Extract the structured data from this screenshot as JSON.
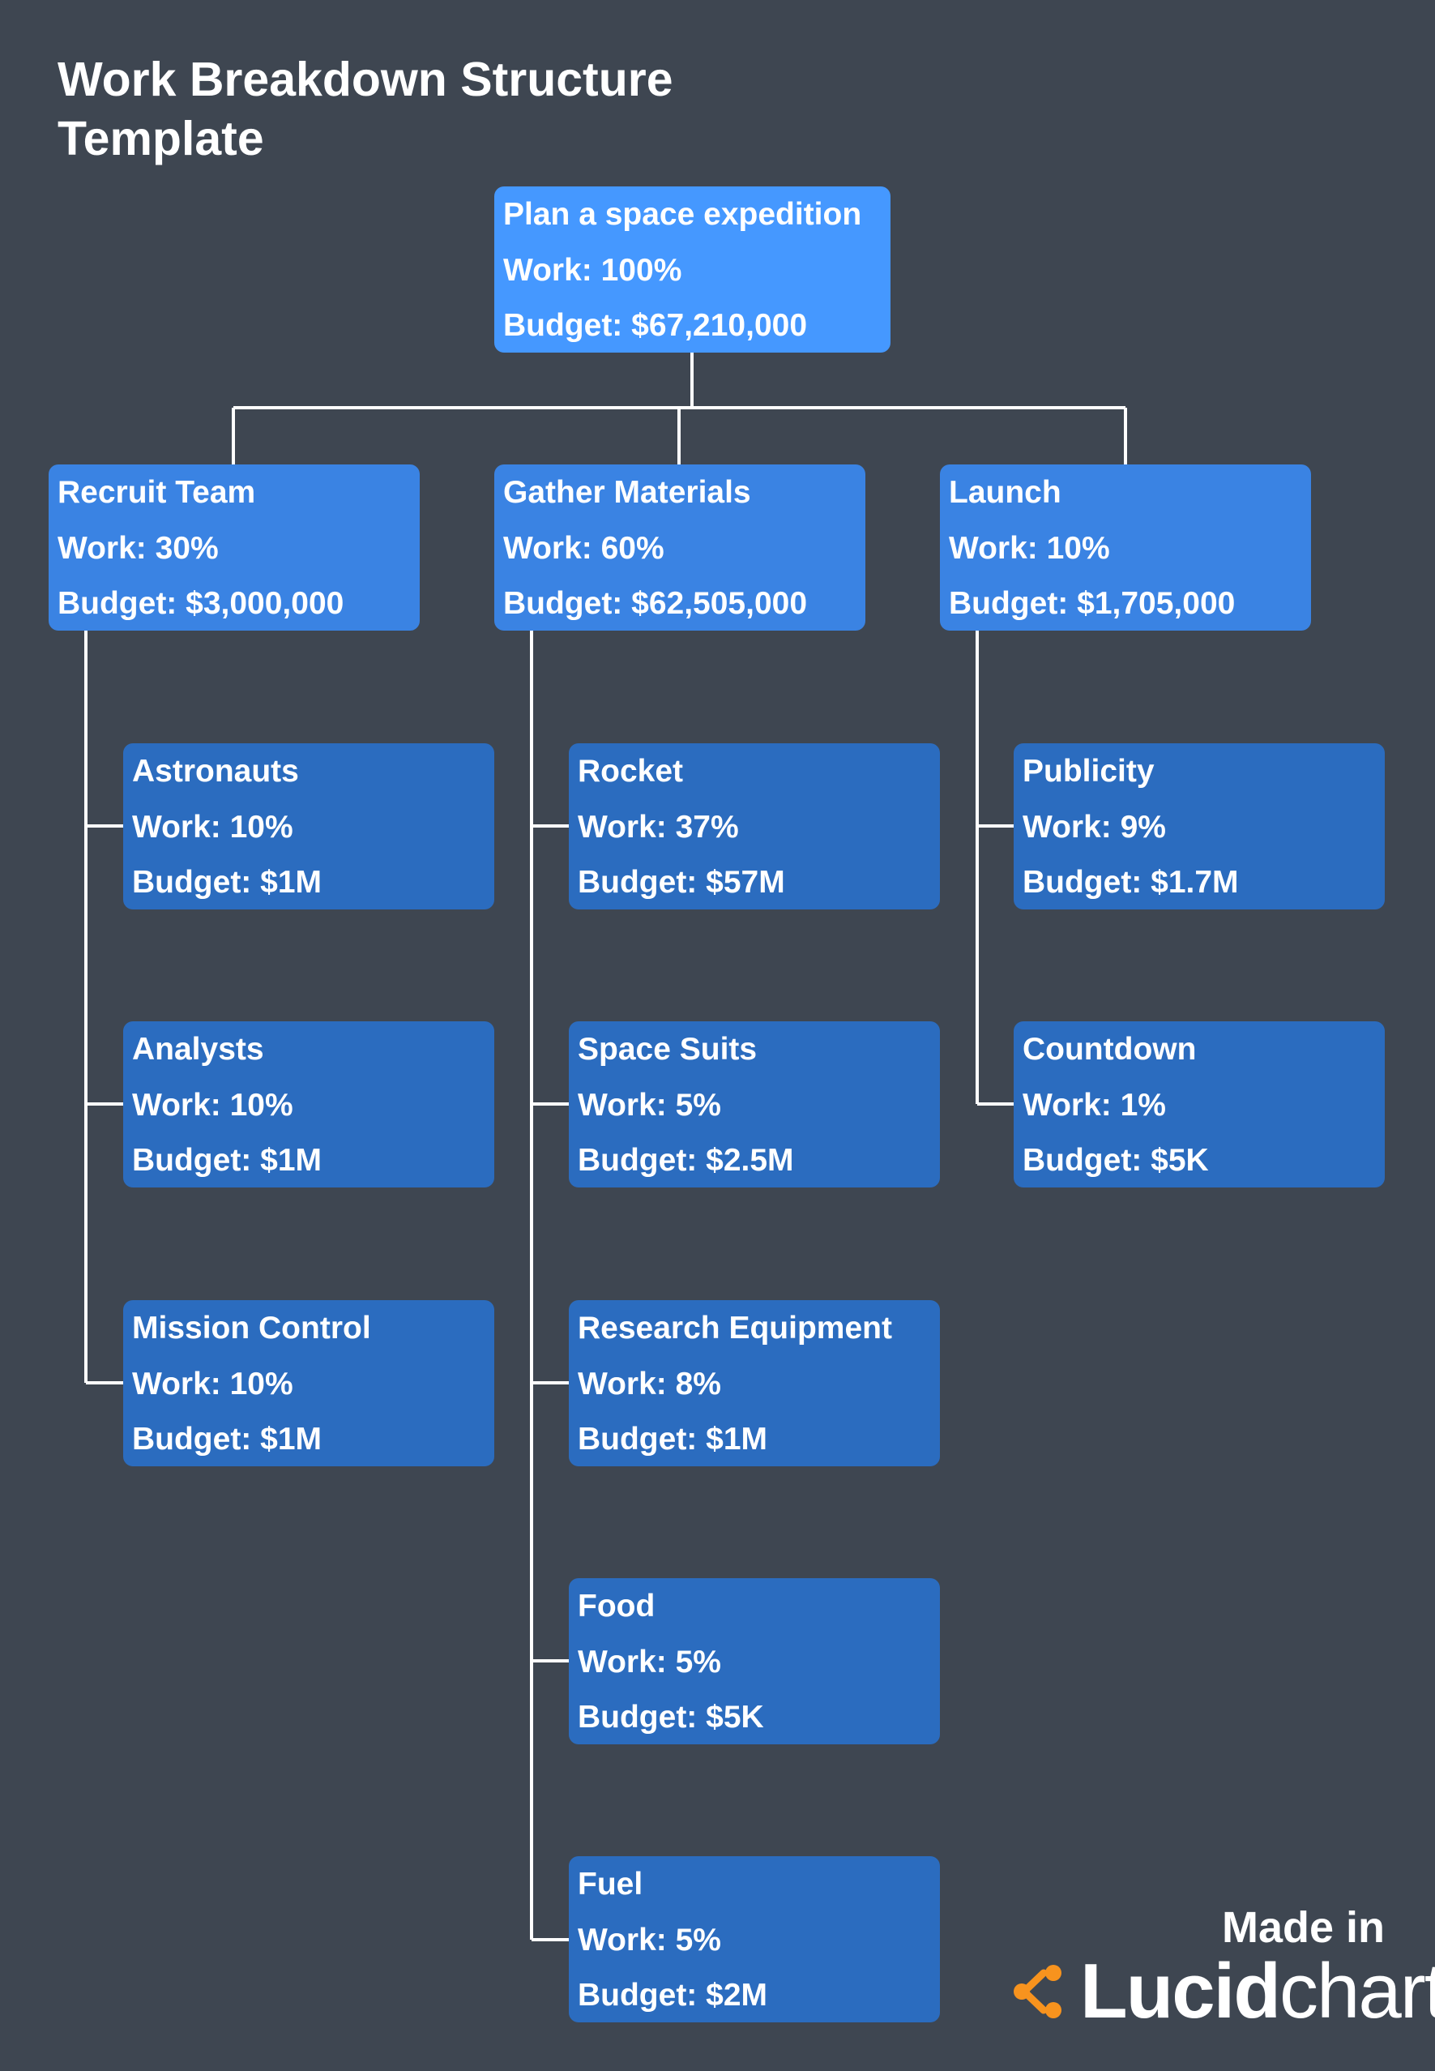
{
  "title": {
    "line1": "Work Breakdown Structure",
    "line2": "Template"
  },
  "root": {
    "name": "Plan a space expedition",
    "work": "Work: 100%",
    "budget": "Budget: $67,210,000"
  },
  "branches": [
    {
      "name": "Recruit Team",
      "work": "Work: 30%",
      "budget": "Budget: $3,000,000",
      "children": [
        {
          "name": "Astronauts",
          "work": "Work: 10%",
          "budget": "Budget: $1M"
        },
        {
          "name": "Analysts",
          "work": "Work: 10%",
          "budget": "Budget: $1M"
        },
        {
          "name": "Mission Control",
          "work": "Work: 10%",
          "budget": "Budget: $1M"
        }
      ]
    },
    {
      "name": "Gather Materials",
      "work": "Work: 60%",
      "budget": "Budget: $62,505,000",
      "children": [
        {
          "name": "Rocket",
          "work": "Work: 37%",
          "budget": "Budget: $57M"
        },
        {
          "name": "Space Suits",
          "work": "Work: 5%",
          "budget": "Budget: $2.5M"
        },
        {
          "name": "Research Equipment",
          "work": "Work: 8%",
          "budget": "Budget: $1M"
        },
        {
          "name": "Food",
          "work": "Work: 5%",
          "budget": "Budget: $5K"
        },
        {
          "name": "Fuel",
          "work": "Work: 5%",
          "budget": "Budget: $2M"
        }
      ]
    },
    {
      "name": "Launch",
      "work": "Work: 10%",
      "budget": "Budget: $1,705,000",
      "children": [
        {
          "name": "Publicity",
          "work": "Work: 9%",
          "budget": "Budget: $1.7M"
        },
        {
          "name": "Countdown",
          "work": "Work: 1%",
          "budget": "Budget: $5K"
        }
      ]
    }
  ],
  "badge": {
    "made_in": "Made in",
    "brand_strong": "Lucid",
    "brand_light": "chart"
  },
  "colors": {
    "background": "#3e4651",
    "root_box": "#4598ff",
    "branch_box": "#3a83e3",
    "leaf_box": "#2b6cbf",
    "connector": "#ffffff",
    "logo_accent": "#f7931e"
  }
}
